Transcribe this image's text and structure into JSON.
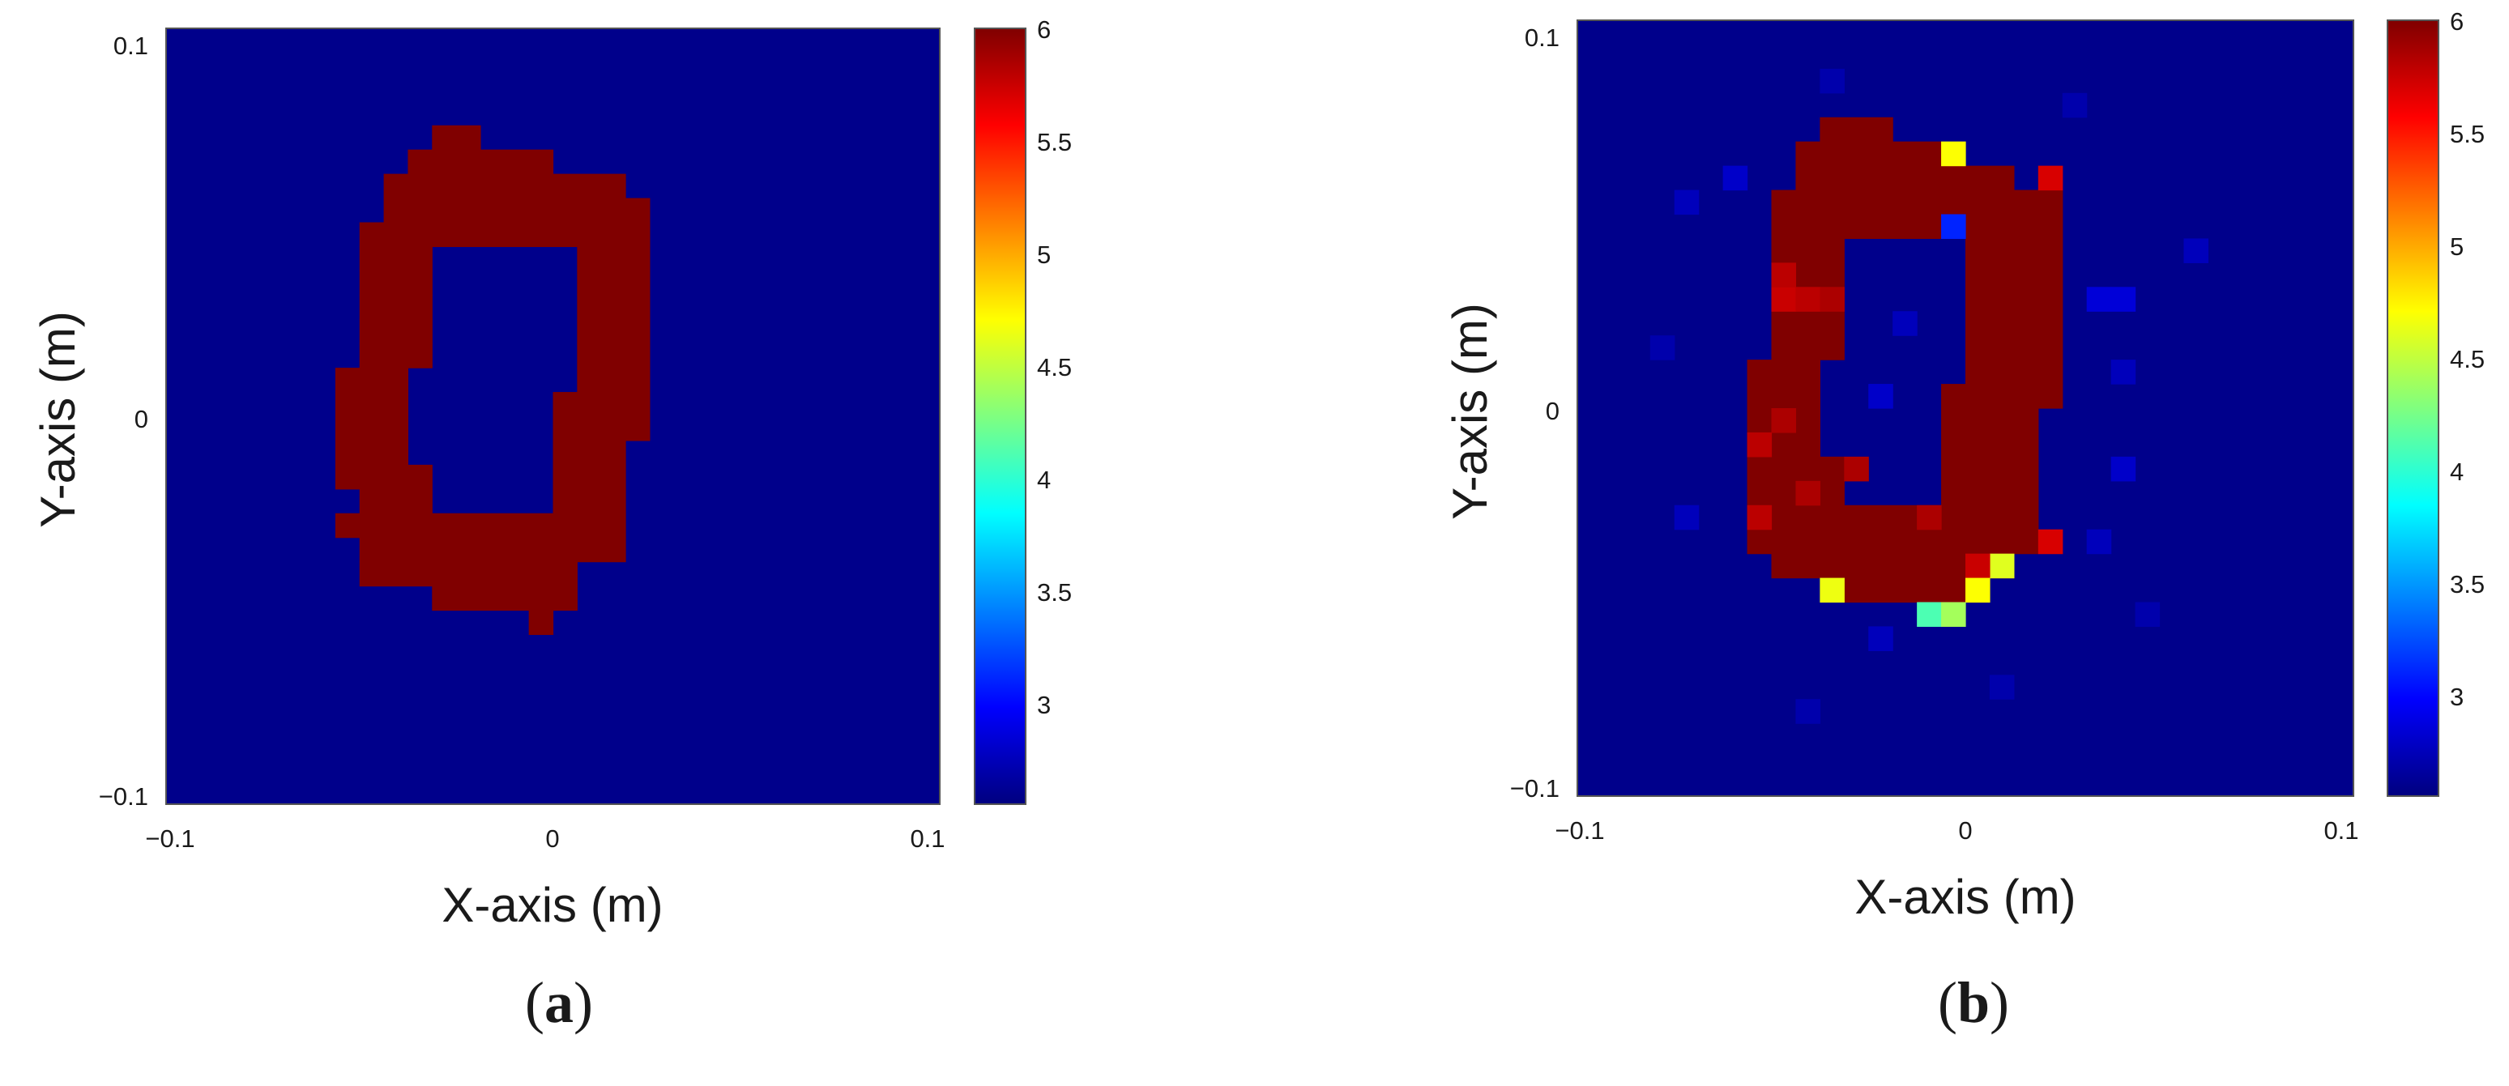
{
  "figure": {
    "panel_labels": [
      "a",
      "b"
    ]
  },
  "chart_data": [
    {
      "type": "heatmap",
      "panel": "a",
      "title": "",
      "xlabel": "X-axis (m)",
      "ylabel": "Y-axis (m)",
      "xlim": [
        -0.1,
        0.1
      ],
      "ylim": [
        -0.1,
        0.1
      ],
      "xticks": [
        "−0.1",
        "0",
        "0.1"
      ],
      "yticks": [
        "0.1",
        "0",
        "−0.1"
      ],
      "colorbar": {
        "colormap": "jet",
        "range": [
          2.55,
          6
        ],
        "ticks": [
          "6",
          "5.5",
          "5",
          "4.5",
          "4",
          "3.5",
          "3"
        ]
      },
      "grid": {
        "cols": 32,
        "rows": 32,
        "cell_size_m": 0.00625
      },
      "background_value": 2.6,
      "cells": [
        {
          "row": 4,
          "c0": 11,
          "c1": 13,
          "v": 6
        },
        {
          "row": 5,
          "c0": 10,
          "c1": 16,
          "v": 6
        },
        {
          "row": 6,
          "c0": 9,
          "c1": 19,
          "v": 6
        },
        {
          "row": 7,
          "c0": 9,
          "c1": 20,
          "v": 6
        },
        {
          "row": 8,
          "c0": 8,
          "c1": 20,
          "v": 6
        },
        {
          "row": 9,
          "c0": 8,
          "c1": 11,
          "v": 6
        },
        {
          "row": 9,
          "c0": 17,
          "c1": 20,
          "v": 6
        },
        {
          "row": 10,
          "c0": 8,
          "c1": 11,
          "v": 6
        },
        {
          "row": 10,
          "c0": 17,
          "c1": 20,
          "v": 6
        },
        {
          "row": 11,
          "c0": 8,
          "c1": 11,
          "v": 6
        },
        {
          "row": 11,
          "c0": 17,
          "c1": 20,
          "v": 6
        },
        {
          "row": 12,
          "c0": 8,
          "c1": 11,
          "v": 6
        },
        {
          "row": 12,
          "c0": 17,
          "c1": 20,
          "v": 6
        },
        {
          "row": 13,
          "c0": 8,
          "c1": 11,
          "v": 6
        },
        {
          "row": 13,
          "c0": 17,
          "c1": 20,
          "v": 6
        },
        {
          "row": 14,
          "c0": 7,
          "c1": 10,
          "v": 6
        },
        {
          "row": 14,
          "c0": 17,
          "c1": 20,
          "v": 6
        },
        {
          "row": 15,
          "c0": 7,
          "c1": 10,
          "v": 6
        },
        {
          "row": 15,
          "c0": 16,
          "c1": 20,
          "v": 6
        },
        {
          "row": 16,
          "c0": 7,
          "c1": 10,
          "v": 6
        },
        {
          "row": 16,
          "c0": 16,
          "c1": 20,
          "v": 6
        },
        {
          "row": 17,
          "c0": 7,
          "c1": 10,
          "v": 6
        },
        {
          "row": 17,
          "c0": 16,
          "c1": 19,
          "v": 6
        },
        {
          "row": 18,
          "c0": 7,
          "c1": 11,
          "v": 6
        },
        {
          "row": 18,
          "c0": 16,
          "c1": 19,
          "v": 6
        },
        {
          "row": 19,
          "c0": 8,
          "c1": 11,
          "v": 6
        },
        {
          "row": 19,
          "c0": 16,
          "c1": 19,
          "v": 6
        },
        {
          "row": 20,
          "c0": 7,
          "c1": 19,
          "v": 6
        },
        {
          "row": 21,
          "c0": 8,
          "c1": 19,
          "v": 6
        },
        {
          "row": 22,
          "c0": 8,
          "c1": 17,
          "v": 6
        },
        {
          "row": 23,
          "c0": 11,
          "c1": 17,
          "v": 6
        },
        {
          "row": 24,
          "c0": 15,
          "c1": 16,
          "v": 6
        }
      ],
      "overrides": []
    },
    {
      "type": "heatmap",
      "panel": "b",
      "title": "",
      "xlabel": "X-axis (m)",
      "ylabel": "Y-axis (m)",
      "xlim": [
        -0.1,
        0.1
      ],
      "ylim": [
        -0.1,
        0.1
      ],
      "xticks": [
        "−0.1",
        "0",
        "0.1"
      ],
      "yticks": [
        "0.1",
        "0",
        "−0.1"
      ],
      "colorbar": {
        "colormap": "jet",
        "range": [
          2.55,
          6
        ],
        "ticks": [
          "6",
          "5.5",
          "5",
          "4.5",
          "4",
          "3.5",
          "3"
        ]
      },
      "grid": {
        "cols": 32,
        "rows": 32,
        "cell_size_m": 0.00625
      },
      "background_value": 2.6,
      "cells": [
        {
          "row": 4,
          "c0": 10,
          "c1": 13,
          "v": 6
        },
        {
          "row": 5,
          "c0": 9,
          "c1": 15,
          "v": 6
        },
        {
          "row": 6,
          "c0": 9,
          "c1": 18,
          "v": 6
        },
        {
          "row": 7,
          "c0": 8,
          "c1": 20,
          "v": 6
        },
        {
          "row": 8,
          "c0": 8,
          "c1": 20,
          "v": 6
        },
        {
          "row": 9,
          "c0": 8,
          "c1": 11,
          "v": 6
        },
        {
          "row": 9,
          "c0": 16,
          "c1": 20,
          "v": 6
        },
        {
          "row": 10,
          "c0": 8,
          "c1": 11,
          "v": 6
        },
        {
          "row": 10,
          "c0": 16,
          "c1": 20,
          "v": 6
        },
        {
          "row": 11,
          "c0": 8,
          "c1": 11,
          "v": 6
        },
        {
          "row": 11,
          "c0": 16,
          "c1": 20,
          "v": 6
        },
        {
          "row": 12,
          "c0": 8,
          "c1": 11,
          "v": 6
        },
        {
          "row": 12,
          "c0": 16,
          "c1": 20,
          "v": 6
        },
        {
          "row": 13,
          "c0": 8,
          "c1": 11,
          "v": 6
        },
        {
          "row": 13,
          "c0": 16,
          "c1": 20,
          "v": 6
        },
        {
          "row": 14,
          "c0": 7,
          "c1": 10,
          "v": 6
        },
        {
          "row": 14,
          "c0": 16,
          "c1": 20,
          "v": 6
        },
        {
          "row": 15,
          "c0": 7,
          "c1": 10,
          "v": 6
        },
        {
          "row": 15,
          "c0": 15,
          "c1": 20,
          "v": 6
        },
        {
          "row": 16,
          "c0": 7,
          "c1": 10,
          "v": 6
        },
        {
          "row": 16,
          "c0": 15,
          "c1": 19,
          "v": 6
        },
        {
          "row": 17,
          "c0": 7,
          "c1": 10,
          "v": 6
        },
        {
          "row": 17,
          "c0": 15,
          "c1": 19,
          "v": 6
        },
        {
          "row": 18,
          "c0": 7,
          "c1": 11,
          "v": 6
        },
        {
          "row": 18,
          "c0": 15,
          "c1": 19,
          "v": 6
        },
        {
          "row": 19,
          "c0": 7,
          "c1": 11,
          "v": 6
        },
        {
          "row": 19,
          "c0": 15,
          "c1": 19,
          "v": 6
        },
        {
          "row": 20,
          "c0": 7,
          "c1": 19,
          "v": 6
        },
        {
          "row": 21,
          "c0": 7,
          "c1": 19,
          "v": 6
        },
        {
          "row": 22,
          "c0": 8,
          "c1": 18,
          "v": 6
        },
        {
          "row": 23,
          "c0": 11,
          "c1": 17,
          "v": 6
        }
      ],
      "overrides": [
        {
          "row": 5,
          "col": 15,
          "v": 4.7
        },
        {
          "row": 6,
          "col": 19,
          "v": 5.7
        },
        {
          "row": 8,
          "col": 15,
          "v": 3.1
        },
        {
          "row": 11,
          "col": 21,
          "v": 2.85
        },
        {
          "row": 11,
          "col": 22,
          "v": 2.85
        },
        {
          "row": 11,
          "col": 8,
          "v": 5.75
        },
        {
          "row": 11,
          "col": 9,
          "v": 5.8
        },
        {
          "row": 11,
          "col": 10,
          "v": 5.85
        },
        {
          "row": 10,
          "col": 8,
          "v": 5.8
        },
        {
          "row": 17,
          "col": 7,
          "v": 5.8
        },
        {
          "row": 16,
          "col": 8,
          "v": 5.85
        },
        {
          "row": 18,
          "col": 11,
          "v": 5.85
        },
        {
          "row": 19,
          "col": 9,
          "v": 5.85
        },
        {
          "row": 20,
          "col": 7,
          "v": 5.8
        },
        {
          "row": 20,
          "col": 14,
          "v": 5.85
        },
        {
          "row": 21,
          "col": 19,
          "v": 5.7
        },
        {
          "row": 22,
          "col": 17,
          "v": 4.6
        },
        {
          "row": 22,
          "col": 16,
          "v": 5.75
        },
        {
          "row": 23,
          "col": 10,
          "v": 4.65
        },
        {
          "row": 23,
          "col": 16,
          "v": 4.7
        },
        {
          "row": 24,
          "col": 14,
          "v": 4.1
        },
        {
          "row": 24,
          "col": 15,
          "v": 4.4
        },
        {
          "row": 7,
          "col": 4,
          "v": 2.75
        },
        {
          "row": 6,
          "col": 6,
          "v": 2.8
        },
        {
          "row": 9,
          "col": 25,
          "v": 2.75
        },
        {
          "row": 12,
          "col": 13,
          "v": 2.75
        },
        {
          "row": 15,
          "col": 12,
          "v": 2.8
        },
        {
          "row": 14,
          "col": 22,
          "v": 2.75
        },
        {
          "row": 18,
          "col": 22,
          "v": 2.8
        },
        {
          "row": 20,
          "col": 4,
          "v": 2.75
        },
        {
          "row": 21,
          "col": 21,
          "v": 2.75
        },
        {
          "row": 25,
          "col": 12,
          "v": 2.75
        },
        {
          "row": 27,
          "col": 17,
          "v": 2.7
        },
        {
          "row": 2,
          "col": 10,
          "v": 2.7
        },
        {
          "row": 3,
          "col": 20,
          "v": 2.7
        },
        {
          "row": 28,
          "col": 9,
          "v": 2.7
        },
        {
          "row": 13,
          "col": 3,
          "v": 2.7
        },
        {
          "row": 24,
          "col": 23,
          "v": 2.7
        }
      ]
    }
  ]
}
